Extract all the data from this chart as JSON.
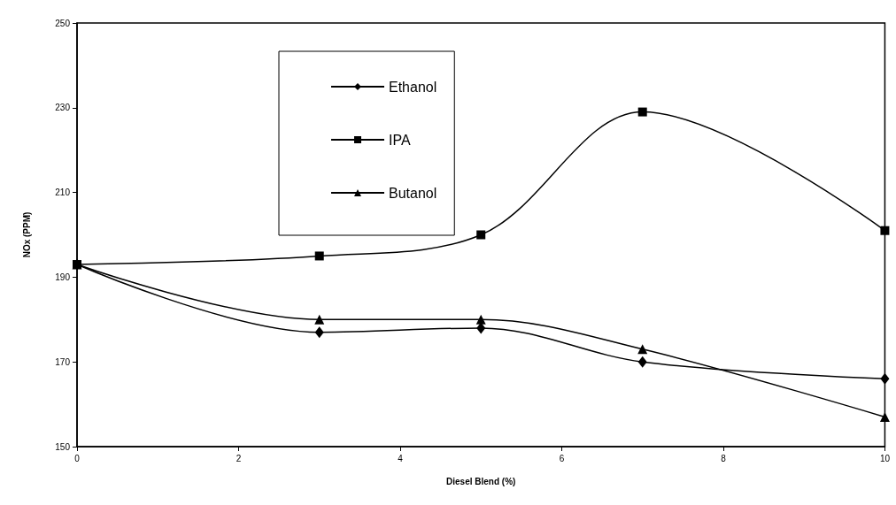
{
  "chart_data": {
    "type": "line",
    "xlabel": "Diesel Blend (%)",
    "ylabel": "NOx (PPM)",
    "x": [
      0,
      3,
      5,
      7,
      10
    ],
    "series": [
      {
        "name": "Ethanol",
        "color": "#000000",
        "marker": "diamond",
        "values": [
          193,
          177,
          178,
          170,
          166
        ]
      },
      {
        "name": "IPA",
        "color": "#000000",
        "marker": "square",
        "values": [
          193,
          195,
          200,
          229,
          201
        ]
      },
      {
        "name": "Butanol",
        "color": "#000000",
        "marker": "triangle",
        "values": [
          193,
          180,
          180,
          173,
          157
        ]
      }
    ],
    "xlim": [
      0,
      10
    ],
    "xticks": [
      0,
      2,
      4,
      6,
      8,
      10
    ],
    "ylim": [
      150,
      250
    ],
    "yticks": [
      150,
      170,
      190,
      210,
      230,
      250
    ],
    "grid": false,
    "legend": "top left",
    "line_style": "solid"
  }
}
